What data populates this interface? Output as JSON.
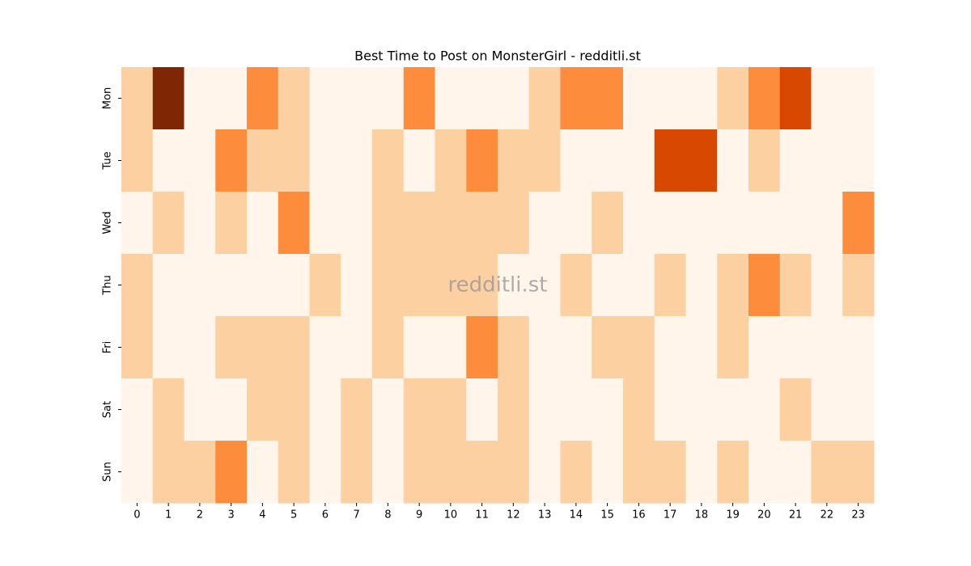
{
  "chart_data": {
    "type": "heatmap",
    "title": "Best Time to Post on MonsterGirl - redditli.st",
    "watermark": "redditli.st",
    "x_categories": [
      0,
      1,
      2,
      3,
      4,
      5,
      6,
      7,
      8,
      9,
      10,
      11,
      12,
      13,
      14,
      15,
      16,
      17,
      18,
      19,
      20,
      21,
      22,
      23
    ],
    "y_categories": [
      "Mon",
      "Tue",
      "Wed",
      "Thu",
      "Fri",
      "Sat",
      "Sun"
    ],
    "colors": [
      "#fff5eb",
      "#fdd0a2",
      "#fd8d3c",
      "#d94801",
      "#7f2704"
    ],
    "values": [
      [
        1,
        4,
        0,
        0,
        2,
        1,
        0,
        0,
        0,
        2,
        0,
        0,
        0,
        1,
        2,
        2,
        0,
        0,
        0,
        1,
        2,
        3,
        0,
        0
      ],
      [
        1,
        0,
        0,
        2,
        1,
        1,
        0,
        0,
        1,
        0,
        1,
        2,
        1,
        1,
        0,
        0,
        0,
        3,
        3,
        0,
        1,
        0,
        0,
        0
      ],
      [
        0,
        1,
        0,
        1,
        0,
        2,
        0,
        0,
        1,
        1,
        1,
        1,
        1,
        0,
        0,
        1,
        0,
        0,
        0,
        0,
        0,
        0,
        0,
        2
      ],
      [
        1,
        0,
        0,
        0,
        0,
        0,
        1,
        0,
        1,
        1,
        1,
        1,
        0,
        0,
        1,
        0,
        0,
        1,
        0,
        1,
        2,
        1,
        0,
        1
      ],
      [
        1,
        0,
        0,
        1,
        1,
        1,
        0,
        0,
        1,
        0,
        0,
        2,
        1,
        0,
        0,
        1,
        1,
        0,
        0,
        1,
        0,
        0,
        0,
        0
      ],
      [
        0,
        1,
        0,
        0,
        1,
        1,
        0,
        1,
        0,
        1,
        1,
        0,
        1,
        0,
        0,
        0,
        1,
        0,
        0,
        0,
        0,
        1,
        0,
        0
      ],
      [
        0,
        1,
        1,
        2,
        0,
        1,
        0,
        1,
        0,
        1,
        1,
        1,
        1,
        0,
        1,
        0,
        1,
        1,
        0,
        1,
        0,
        0,
        1,
        1
      ]
    ]
  }
}
